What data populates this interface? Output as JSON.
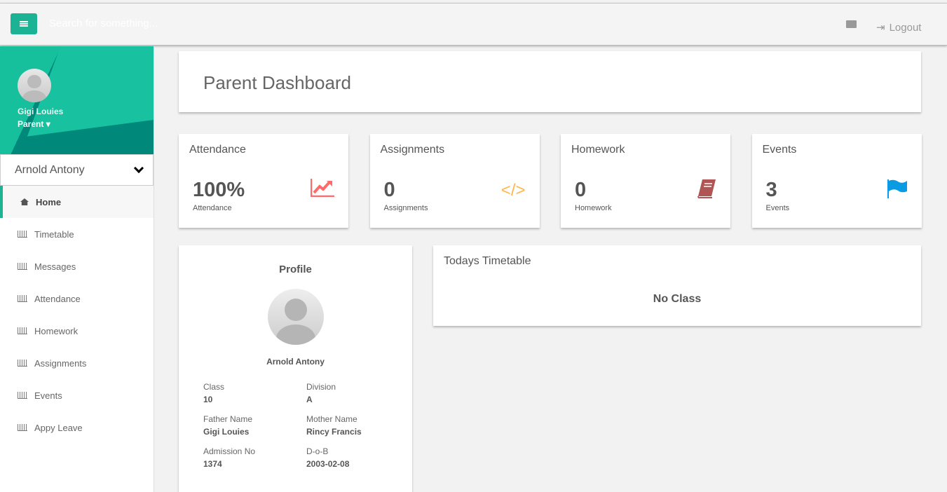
{
  "topbar": {
    "search_placeholder": "Search for something...",
    "logout": "Logout"
  },
  "sidebar": {
    "user_name": "Gigi Louies",
    "role": "Parent",
    "selected_child": "Arnold Antony",
    "items": [
      {
        "label": "Home",
        "icon": "home-icon"
      },
      {
        "label": "Timetable",
        "icon": "bar-chart-icon"
      },
      {
        "label": "Messages",
        "icon": "bar-chart-icon"
      },
      {
        "label": "Attendance",
        "icon": "bar-chart-icon"
      },
      {
        "label": "Homework",
        "icon": "bar-chart-icon"
      },
      {
        "label": "Assignments",
        "icon": "bar-chart-icon"
      },
      {
        "label": "Events",
        "icon": "bar-chart-icon"
      },
      {
        "label": "Appy Leave",
        "icon": "bar-chart-icon"
      }
    ]
  },
  "page_title": "Parent Dashboard",
  "stats": [
    {
      "title": "Attendance",
      "value": "100%",
      "sub": "Attendance",
      "icon": "line-chart-icon",
      "color": "#ff6b6b"
    },
    {
      "title": "Assignments",
      "value": "0",
      "sub": "Assignments",
      "icon": "code-icon",
      "color": "#ffb74d"
    },
    {
      "title": "Homework",
      "value": "0",
      "sub": "Homework",
      "icon": "book-icon",
      "color": "#b05454"
    },
    {
      "title": "Events",
      "value": "3",
      "sub": "Events",
      "icon": "flag-icon",
      "color": "#0a9be3"
    }
  ],
  "profile": {
    "heading": "Profile",
    "name": "Arnold Antony",
    "fields": [
      {
        "label": "Class",
        "value": "10"
      },
      {
        "label": "Division",
        "value": "A"
      },
      {
        "label": "Father Name",
        "value": "Gigi Louies"
      },
      {
        "label": "Mother Name",
        "value": "Rincy Francis"
      },
      {
        "label": "Admission No",
        "value": "1374"
      },
      {
        "label": "D-o-B",
        "value": "2003-02-08"
      }
    ]
  },
  "timetable": {
    "heading": "Todays Timetable",
    "empty": "No Class"
  },
  "colors": {
    "accent": "#1bb394"
  }
}
